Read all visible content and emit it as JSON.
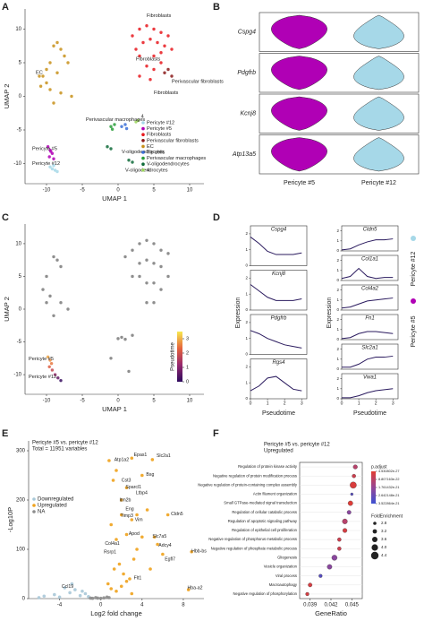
{
  "chart_data": [
    {
      "type": "scatter",
      "panel": "A",
      "xlabel": "UMAP 1",
      "ylabel": "UMAP 2",
      "xlim": [
        -13,
        12
      ],
      "ylim": [
        -13,
        13
      ],
      "xticks": [
        -10,
        -5,
        0,
        5,
        10
      ],
      "yticks": [
        -10,
        -5,
        0,
        5,
        10
      ],
      "legend": "bottom-right",
      "series": [
        {
          "name": "Pericyte #12",
          "color": "#a6d8e8",
          "x": [
            -9.5,
            -9.2,
            -8.8,
            -9,
            -8.5
          ],
          "values": [
            -10.5,
            -10.8,
            -11,
            -10.3,
            -11.2
          ]
        },
        {
          "name": "Pericyte #5",
          "color": "#b000b5",
          "x": [
            -9.8,
            -9.5,
            -9.2,
            -9.6,
            -9.0,
            -9.4
          ],
          "values": [
            -7.5,
            -8,
            -8.5,
            -9,
            -9.3,
            -8.2
          ]
        },
        {
          "name": "Fibroblasts",
          "color": "#e8191e",
          "x": [
            2,
            3,
            4,
            5,
            6,
            7,
            3.5,
            4.5,
            5.5,
            6.5,
            2.5,
            3,
            5,
            6,
            7.5,
            4,
            5,
            6,
            3,
            4.5
          ],
          "values": [
            9,
            10,
            10.5,
            10,
            9.5,
            9,
            8,
            8.5,
            8,
            7.5,
            7,
            6,
            6,
            6.5,
            7,
            4.5,
            4,
            5,
            3,
            2.5
          ]
        },
        {
          "name": "Perivascular fibroblasts",
          "color": "#8b1a1a",
          "x": [
            6.5,
            7,
            7.5
          ],
          "values": [
            3.5,
            4,
            3
          ]
        },
        {
          "name": "EC",
          "color": "#c8901a",
          "x": [
            -9,
            -8.5,
            -8,
            -7.5,
            -7,
            -9.5,
            -10,
            -10.5,
            -10,
            -9.5,
            -8,
            -6.5,
            -9,
            -10.8,
            -11,
            -8.5
          ],
          "values": [
            7.5,
            8,
            7,
            6,
            5,
            5,
            4,
            3,
            2,
            1,
            0.5,
            0,
            -1,
            1.5,
            3,
            3.5
          ]
        },
        {
          "name": "Tip cells",
          "color": "#3b6fd6",
          "x": [
            0.5,
            1,
            1.2
          ],
          "values": [
            -4.5,
            -4.2,
            -4.8
          ]
        },
        {
          "name": "Perivascular macrophages",
          "color": "#2a9d3a",
          "x": [
            -1,
            -0.5,
            -0.8
          ],
          "values": [
            -4.5,
            -4.2,
            -4.9
          ]
        },
        {
          "name": "V-oligodendrocytes",
          "color": "#0f6b3a",
          "x": [
            -1.5,
            -1,
            1.5,
            2
          ],
          "values": [
            -7.5,
            -7.8,
            -9.5,
            -9.8
          ]
        },
        {
          "name": "4",
          "color": "#9ad35a",
          "x": [
            2.5,
            2.8
          ],
          "values": [
            -3.8,
            -3.6
          ]
        }
      ],
      "annotations": [
        {
          "text": "Fibroblasts",
          "x": 4,
          "y": 12
        },
        {
          "text": "EC",
          "x": -11.5,
          "y": 3.5
        },
        {
          "text": "Fibroblasts",
          "x": 2.5,
          "y": 5.5
        },
        {
          "text": "Perivascular fibroblasts",
          "x": 7.5,
          "y": 2.2
        },
        {
          "text": "Fibroblasts",
          "x": 5,
          "y": 0.5
        },
        {
          "text": "Perivascular macrophages",
          "x": -4.5,
          "y": -3.5
        },
        {
          "text": "4",
          "x": 3.2,
          "y": -3
        },
        {
          "text": "Pericyte #5",
          "x": -12,
          "y": -7.8
        },
        {
          "text": "Pericyte #12",
          "x": -12,
          "y": -10
        },
        {
          "text": "V-oligodendrocytes",
          "x": 0.5,
          "y": -8.3
        },
        {
          "text": "V-oligodendrocytes",
          "x": 1,
          "y": -11
        }
      ]
    },
    {
      "type": "violin",
      "panel": "B",
      "categories": [
        "Pericyte #5",
        "Pericyte #12"
      ],
      "colors": [
        "#b000b5",
        "#a6d8e8"
      ],
      "genes": [
        "Cspg4",
        "Pdgfrb",
        "Kcnj8",
        "Atp13a5"
      ]
    },
    {
      "type": "scatter",
      "panel": "C",
      "xlabel": "UMAP 1",
      "ylabel": "UMAP 2",
      "xlim": [
        -13,
        12
      ],
      "ylim": [
        -13,
        13
      ],
      "xticks": [
        -10,
        -5,
        0,
        5,
        10
      ],
      "yticks": [
        -10,
        -5,
        0,
        5,
        10
      ],
      "series": [
        {
          "color": "#7a7a7a",
          "x": [
            -9,
            -8.5,
            -8,
            -10,
            -10.5,
            -9.5,
            -8,
            -7,
            -9,
            -10,
            1,
            2,
            3,
            4,
            5,
            6,
            7,
            3,
            4,
            5,
            6,
            2,
            3,
            4,
            5,
            6,
            7,
            4,
            5,
            0,
            0.5,
            1,
            -1,
            1.5,
            2
          ],
          "values": [
            8,
            7.5,
            6.5,
            5,
            3,
            2,
            1,
            0,
            -1,
            1,
            8,
            9,
            10,
            10.5,
            10,
            9,
            8.5,
            7,
            7.5,
            7,
            6.5,
            5,
            5,
            4,
            4,
            3,
            5,
            1,
            1,
            -4.5,
            -4.3,
            -4.6,
            -7.5,
            -9.5,
            -4
          ]
        },
        {
          "x": [
            -9.8,
            -9.5,
            -9.3,
            -9.6,
            -9.2,
            -8.8,
            -8.4,
            -8.0
          ],
          "values": [
            -7.3,
            -7.8,
            -8.3,
            -8.8,
            -9.3,
            -10,
            -10.5,
            -10.9
          ],
          "color_values": [
            2.9,
            2.7,
            2.5,
            2.2,
            1.8,
            1.2,
            0.6,
            0.1
          ]
        }
      ],
      "colorbar": {
        "label": "Pseudotime",
        "lim": [
          0,
          3.5
        ],
        "ticks": [
          0,
          1,
          2,
          3
        ]
      },
      "annotations": [
        {
          "text": "Pericyte #5",
          "x": -12.5,
          "y": -7.6
        },
        {
          "text": "Pericyte #12",
          "x": -12.5,
          "y": -10.3
        }
      ]
    },
    {
      "type": "line-multiples",
      "panel": "D",
      "xlabel": "Pseudotime",
      "ylabel": "Expression",
      "x": [
        0,
        0.5,
        1,
        1.5,
        2,
        2.5,
        3
      ],
      "xlim": [
        0,
        3.3
      ],
      "xticks": [
        0,
        1,
        2,
        3
      ],
      "line_color": "#2a1a5e",
      "legend_entries": [
        {
          "name": "Pericyte #12",
          "color": "#a6d8e8"
        },
        {
          "name": "Pericyte #5",
          "color": "#b000b5"
        }
      ],
      "genes": [
        {
          "name": "Cspg4",
          "ylim": [
            0,
            2.5
          ],
          "yticks": [
            0,
            1,
            2
          ],
          "values": [
            1.8,
            1.4,
            0.9,
            0.7,
            0.7,
            0.7,
            0.8
          ]
        },
        {
          "name": "Kcnj8",
          "ylim": [
            0,
            2.5
          ],
          "yticks": [
            0,
            1,
            2
          ],
          "values": [
            1.6,
            1.2,
            0.8,
            0.6,
            0.6,
            0.6,
            0.7
          ]
        },
        {
          "name": "Pdgfrb",
          "ylim": [
            0,
            2.5
          ],
          "yticks": [
            0,
            1,
            2
          ],
          "values": [
            1.5,
            1.3,
            1.0,
            0.8,
            0.6,
            0.5,
            0.4
          ]
        },
        {
          "name": "Rgs4",
          "ylim": [
            0,
            2.5
          ],
          "yticks": [
            0,
            1,
            2
          ],
          "values": [
            0.5,
            0.8,
            1.3,
            1.4,
            1.0,
            0.6,
            0.5
          ]
        },
        {
          "name": "Cldn5",
          "ylim": [
            0,
            2.5
          ],
          "yticks": [
            0,
            1,
            2
          ],
          "values": [
            0.1,
            0.2,
            0.6,
            0.9,
            1.1,
            1.1,
            1.2
          ]
        },
        {
          "name": "Col1a1",
          "ylim": [
            0,
            2.5
          ],
          "yticks": [
            0,
            1,
            2
          ],
          "values": [
            0.2,
            0.4,
            1.2,
            0.4,
            0.2,
            0.3,
            0.3
          ]
        },
        {
          "name": "Col4a2",
          "ylim": [
            0,
            2.5
          ],
          "yticks": [
            0,
            1,
            2
          ],
          "values": [
            0.2,
            0.3,
            0.6,
            0.9,
            1.0,
            1.1,
            1.2
          ]
        },
        {
          "name": "Fn1",
          "ylim": [
            0,
            2.5
          ],
          "yticks": [
            0,
            1,
            2
          ],
          "values": [
            0.1,
            0.2,
            0.6,
            0.8,
            0.8,
            0.7,
            0.6
          ]
        },
        {
          "name": "Slc2a1",
          "ylim": [
            0,
            2.5
          ],
          "yticks": [
            0,
            1,
            2
          ],
          "values": [
            0.2,
            0.2,
            0.5,
            1.0,
            1.2,
            1.2,
            1.3
          ]
        },
        {
          "name": "Vwa1",
          "ylim": [
            0,
            2.5
          ],
          "yticks": [
            0,
            1,
            2
          ],
          "values": [
            0.1,
            0.1,
            0.3,
            0.6,
            0.8,
            0.9,
            1.0
          ]
        }
      ]
    },
    {
      "type": "volcano",
      "panel": "E",
      "title": "Pericyte #5 vs. pericyte #12",
      "subtitle": "Total = 11951 variables",
      "xlabel": "Log2 fold change",
      "ylabel": "-Log10P",
      "xlim": [
        -7,
        10
      ],
      "ylim": [
        0,
        320
      ],
      "xticks": [
        -4,
        0,
        4,
        8
      ],
      "yticks": [
        0,
        100,
        200,
        300
      ],
      "series": [
        {
          "name": "Downregulated",
          "color": "#a8c8d8",
          "x": [
            -5.5,
            -4.5,
            -3.5,
            -3,
            -2.5,
            -2,
            -1.5,
            -1.2,
            -4,
            -2.8,
            -1.8,
            -6
          ],
          "values": [
            5,
            8,
            22,
            12,
            18,
            6,
            10,
            4,
            3,
            30,
            15,
            2
          ]
        },
        {
          "name": "Upregulated",
          "color": "#f0a21c",
          "x": [
            0.8,
            1.2,
            1.5,
            2,
            2.5,
            3,
            3.5,
            4,
            4.5,
            5,
            5.5,
            6,
            1,
            1.5,
            2,
            2.5,
            3,
            3.5,
            4,
            1.3,
            1.8,
            2.2,
            2.8,
            3.2,
            0.7,
            1,
            1.5,
            2,
            2.5,
            3,
            6.5,
            8.8,
            8.5,
            5.2,
            4.8
          ],
          "values": [
            280,
            240,
            260,
            200,
            225,
            285,
            170,
            250,
            180,
            282,
            110,
            90,
            150,
            120,
            170,
            130,
            160,
            100,
            125,
            60,
            70,
            50,
            40,
            80,
            30,
            20,
            15,
            25,
            35,
            10,
            170,
            95,
            18,
            125,
            60
          ]
        },
        {
          "name": "NA",
          "color": "#8c8c8c",
          "x": [
            -1,
            -0.5,
            0,
            0.3,
            0.6,
            -0.3,
            0.8,
            -0.8
          ],
          "values": [
            1,
            2,
            0.5,
            1.5,
            3,
            1,
            2,
            0.5
          ]
        }
      ],
      "annotations": [
        {
          "text": "Atp1a2",
          "x": 1.3,
          "y": 282
        },
        {
          "text": "Epas1",
          "x": 3.2,
          "y": 292
        },
        {
          "text": "Slc2a1",
          "x": 5.4,
          "y": 290
        },
        {
          "text": "Bsg",
          "x": 4.4,
          "y": 252
        },
        {
          "text": "Cst3",
          "x": 2.0,
          "y": 240
        },
        {
          "text": "Sparcl1",
          "x": 2.4,
          "y": 226
        },
        {
          "text": "Ltbp4",
          "x": 3.4,
          "y": 214
        },
        {
          "text": "Itm2b",
          "x": 1.8,
          "y": 200
        },
        {
          "text": "Cldn5",
          "x": 6.8,
          "y": 172
        },
        {
          "text": "Eng",
          "x": 2.4,
          "y": 182
        },
        {
          "text": "Timp3",
          "x": 1.9,
          "y": 168
        },
        {
          "text": "Vim",
          "x": 3.3,
          "y": 160
        },
        {
          "text": "Apod",
          "x": 2.7,
          "y": 132
        },
        {
          "text": "Slc7a5",
          "x": 5.0,
          "y": 126
        },
        {
          "text": "Adcy4",
          "x": 5.6,
          "y": 108
        },
        {
          "text": "Hbb-bs",
          "x": 8.8,
          "y": 96
        },
        {
          "text": "Egfl7",
          "x": 6.2,
          "y": 80
        },
        {
          "text": "Col4a1",
          "x": 0.4,
          "y": 112
        },
        {
          "text": "Rsrp1",
          "x": 0.3,
          "y": 94
        },
        {
          "text": "Flt1",
          "x": 3.2,
          "y": 42
        },
        {
          "text": "Hba-a2",
          "x": 8.4,
          "y": 22
        },
        {
          "text": "Ccl19",
          "x": -3.8,
          "y": 24
        }
      ]
    },
    {
      "type": "dot",
      "panel": "F",
      "title": "Pericyte #5 vs. pericyte #12",
      "subtitle": "Upregulated",
      "xlabel": "GeneRatio",
      "xlim": [
        0.0375,
        0.0465
      ],
      "xticks": [
        0.039,
        0.042,
        0.045
      ],
      "categories": [
        "Regulation of protein kinase activity",
        "Negative regulation of protein modification process",
        "Negative regulation of protein-containing complex assembly",
        "Actin filament organization",
        "Small GTPase-mediated signal transduction",
        "Regulation of cellular catabolic process",
        "Regulation of apoptotic signaling pathway",
        "Regulation of epithelial cell proliferation",
        "Negative regulation of phosphorus metabolic process",
        "Negative regulation of phosphate metabolic process",
        "Gliogenesis",
        "Vesicle organization",
        "Viral process",
        "Macroautophagy",
        "Negative regulation of phosphorylation"
      ],
      "values": [
        0.0455,
        0.0453,
        0.0452,
        0.045,
        0.0448,
        0.0446,
        0.044,
        0.044,
        0.0432,
        0.0432,
        0.0425,
        0.0418,
        0.0405,
        0.039,
        0.0386
      ],
      "p_adjust": [
        1e-21,
        5e-22,
        2e-22,
        3e-21,
        1e-22,
        2e-21,
        1e-21,
        3e-22,
        5e-22,
        5e-22,
        2e-21,
        2e-21,
        3e-21,
        3e-22,
        3e-22
      ],
      "fold_enrichment": [
        3.2,
        3.0,
        4.0,
        2.6,
        3.4,
        3.1,
        3.5,
        3.2,
        3.0,
        3.0,
        3.6,
        3.4,
        2.9,
        3.1,
        2.9
      ],
      "color_label": "p.adjust",
      "color_ticks": [
        4.530802e-27,
        8.807163e-22,
        1.761432e-21,
        2.642148e-21,
        3.522864e-21
      ],
      "size_label": "FoldEnrichment",
      "size_ticks": [
        2.8,
        3.2,
        3.6,
        {
          "value": 4,
          "label": "4.0"
        },
        4.4
      ]
    }
  ]
}
